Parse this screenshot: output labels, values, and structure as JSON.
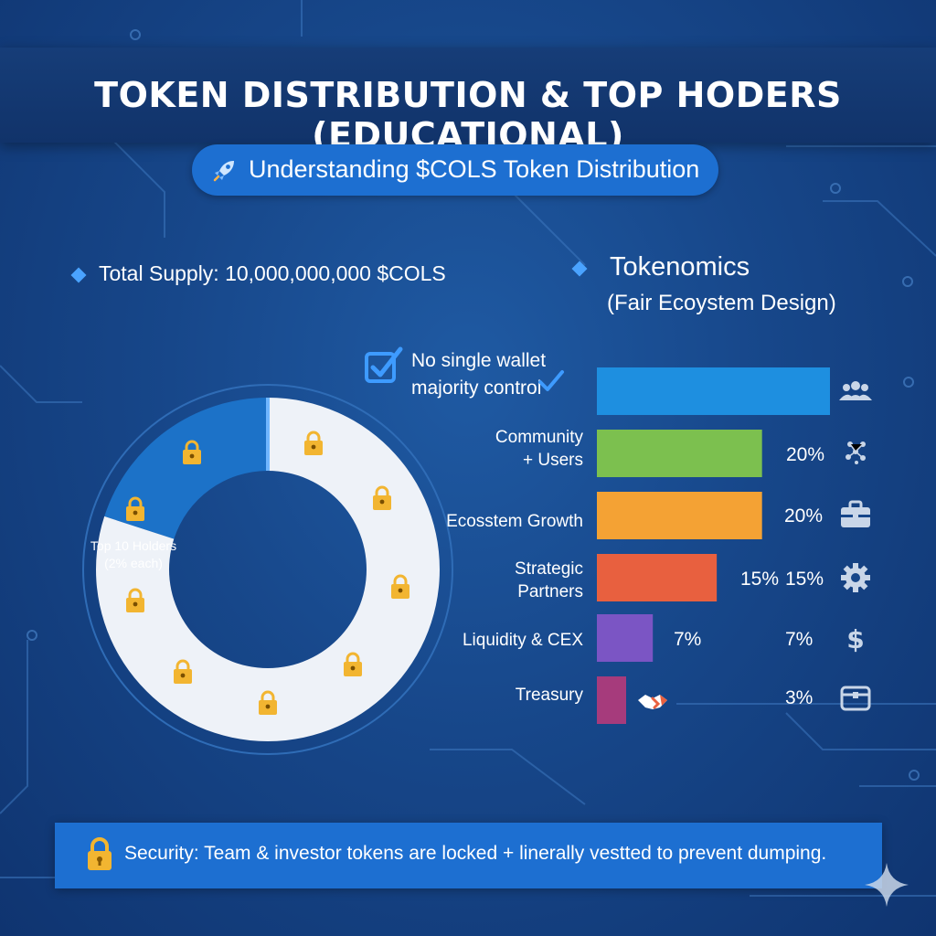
{
  "header": {
    "title": "TOKEN DISTRIBUTION & TOP HODERS (EDUCATIONAL)",
    "subtitle": "Understanding $COLS Token Distribution",
    "subtitle_icon": "rocket-icon"
  },
  "supply": {
    "text": "Total Supply: 10,000,000,000 $COLS"
  },
  "tokenomics": {
    "title": "Tokenomics",
    "subtitle": "(Fair Ecoystem Design)",
    "majority_line1": "No single wallet",
    "majority_line2": "majority control"
  },
  "donut": {
    "label_line1": "Top 10 Holders",
    "label_line2": "(2% each)"
  },
  "footer": {
    "text": "Security: Team & investor tokens are locked + linerally vestted to prevent dumping."
  },
  "colors": {
    "background": "#17478a",
    "accent": "#1d6fd1",
    "bar_blue": "#1e8fe0",
    "bar_green": "#7cc04f",
    "bar_orange": "#f4a234",
    "bar_red": "#e8603f",
    "bar_purple": "#7b55c4",
    "bar_magenta": "#a63b7c",
    "lock": "#f2b531",
    "donut_blue": "#1c72c8",
    "donut_white": "#eef2f8"
  },
  "chart_data": [
    {
      "type": "pie",
      "title": "",
      "series": [
        {
          "name": "Top 10 Holders",
          "value": 20
        },
        {
          "value": 80
        }
      ]
    },
    {
      "type": "bar",
      "title": "Tokenomics",
      "categories": [
        "",
        "Community + Users",
        "Ecosstem Growth",
        "Strategic Partners",
        "Liquidity & CEX",
        "Treasury"
      ],
      "values": [
        35,
        20,
        20,
        15,
        7,
        3
      ],
      "inside_labels": [
        "",
        "",
        "20%",
        "",
        "7%",
        ""
      ],
      "end_labels": [
        "",
        "20%",
        "",
        "15%",
        "",
        ""
      ],
      "right_labels": [
        "",
        "",
        "",
        "15%",
        "7%",
        "3%"
      ],
      "icons": [
        "users-icon",
        "network-icon",
        "briefcase-icon",
        "gear-icon",
        "dollar-icon",
        "treasury-chest-icon"
      ],
      "xlim": [
        0,
        35
      ]
    }
  ]
}
